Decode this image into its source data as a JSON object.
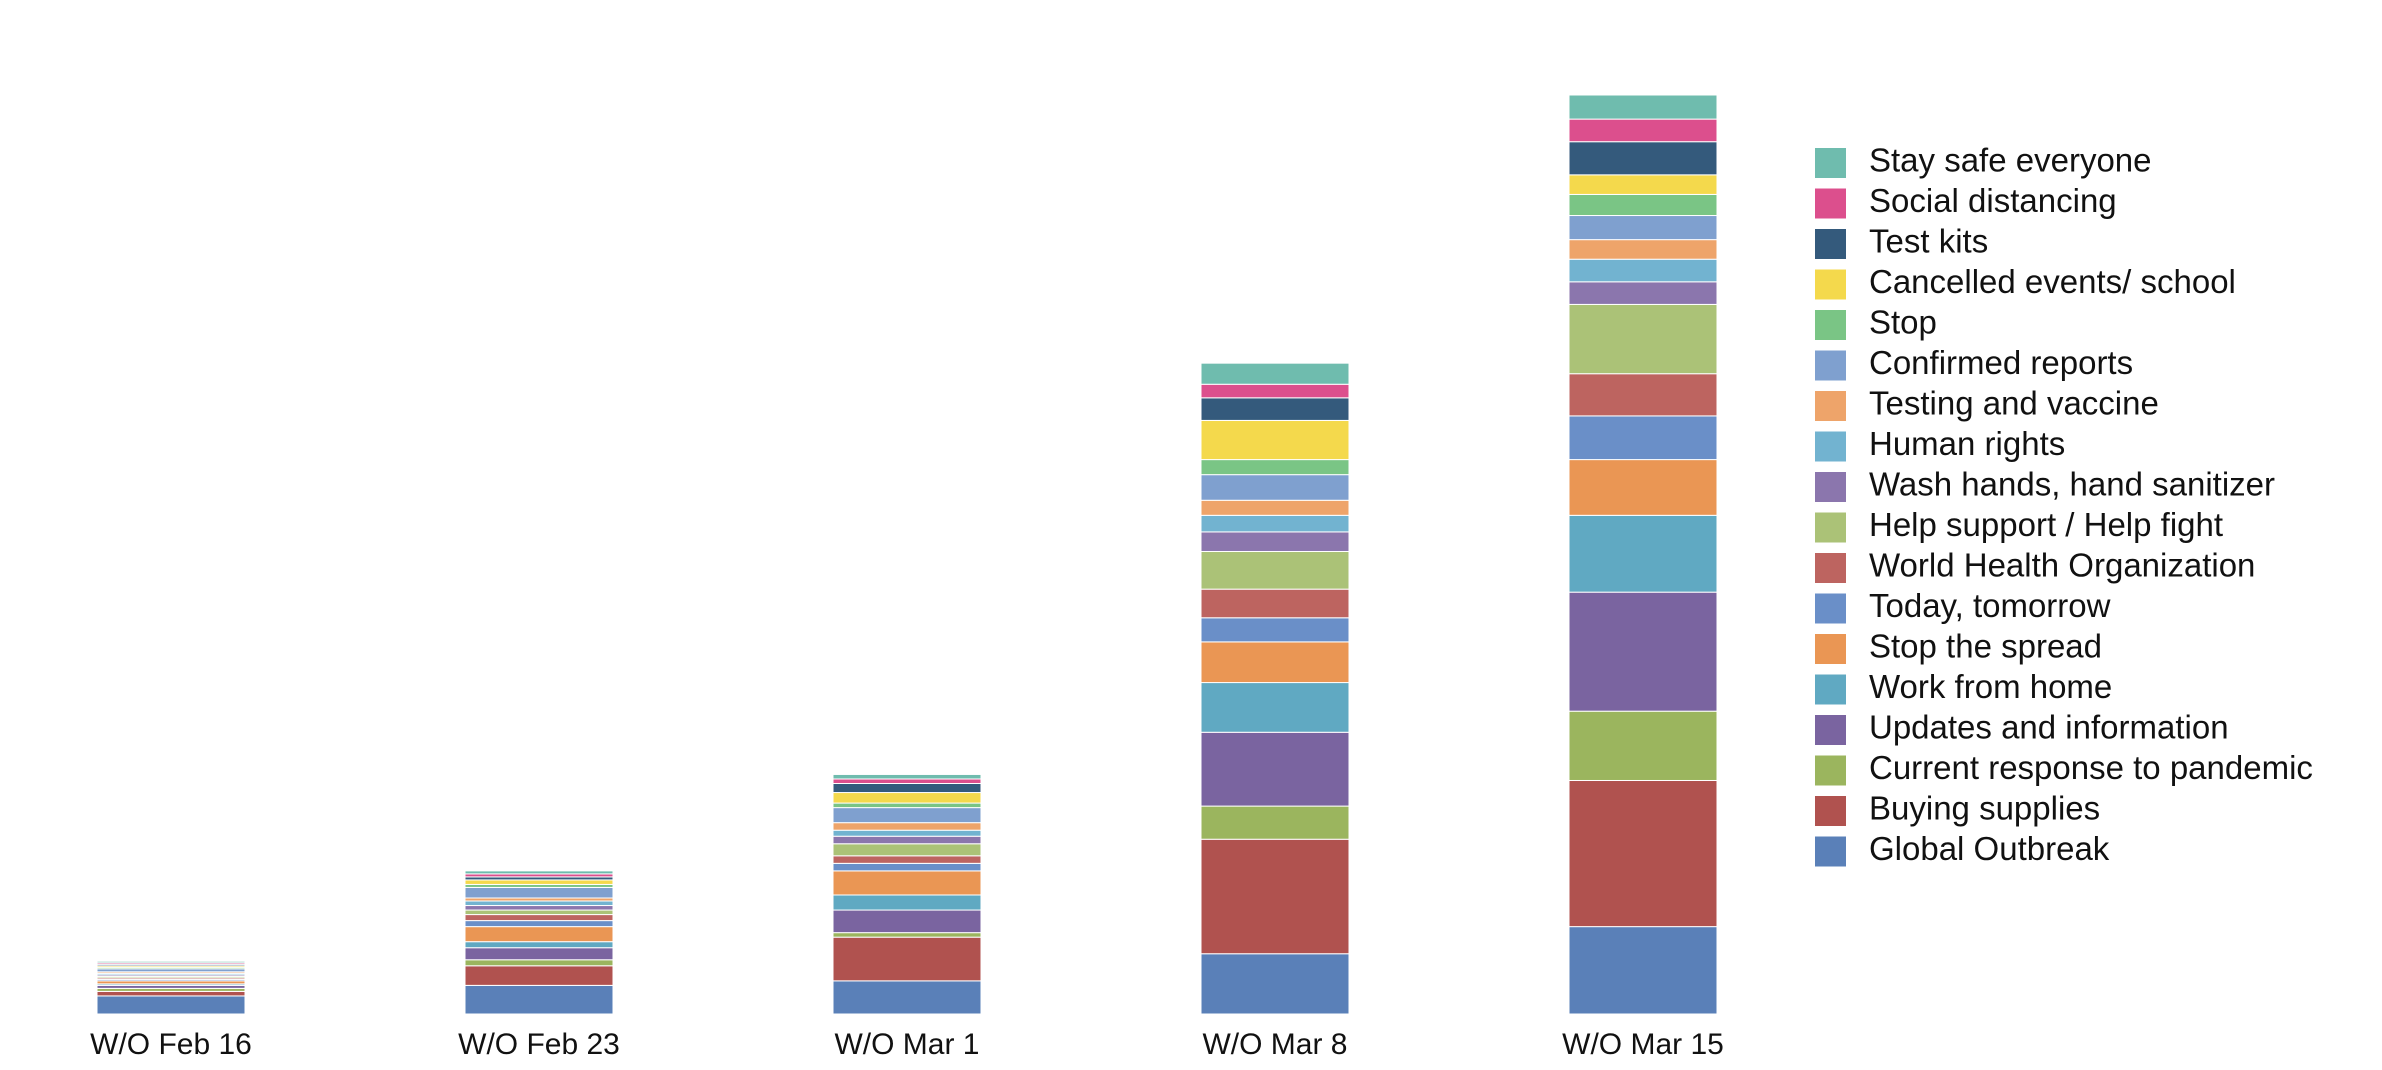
{
  "chart_data": {
    "type": "stacked-bar",
    "categories": [
      "W/O Feb 16",
      "W/O Feb 23",
      "W/O Mar 1",
      "W/O Mar 8",
      "W/O Mar 15"
    ],
    "series": [
      {
        "name": "Global Outbreak",
        "color": "#5a80b8",
        "values": [
          12,
          19,
          22,
          40,
          58
        ]
      },
      {
        "name": "Buying supplies",
        "color": "#b0524f",
        "values": [
          3,
          13,
          29,
          76,
          97
        ]
      },
      {
        "name": "Current response to pandemic",
        "color": "#9bb55e",
        "values": [
          2,
          4,
          3,
          22,
          46
        ]
      },
      {
        "name": "Updates and information",
        "color": "#7a64a0",
        "values": [
          2,
          8,
          15,
          49,
          79
        ]
      },
      {
        "name": "Work from home",
        "color": "#60a9c2",
        "values": [
          1,
          4,
          10,
          33,
          51
        ]
      },
      {
        "name": "Stop the spread",
        "color": "#ea9654",
        "values": [
          2,
          10,
          16,
          27,
          37
        ]
      },
      {
        "name": "Today, tomorrow",
        "color": "#6a8fc8",
        "values": [
          1,
          4,
          5,
          16,
          29
        ]
      },
      {
        "name": "World Health Organization",
        "color": "#bd6460",
        "values": [
          1,
          4,
          5,
          19,
          28
        ]
      },
      {
        "name": "Help support / Help fight",
        "color": "#abc277",
        "values": [
          1,
          3,
          8,
          25,
          46
        ]
      },
      {
        "name": "Wash hands, hand sanitizer",
        "color": "#8b76ad",
        "values": [
          1,
          3,
          5,
          13,
          15
        ]
      },
      {
        "name": "Human rights",
        "color": "#72b3d0",
        "values": [
          1,
          3,
          4,
          11,
          15
        ]
      },
      {
        "name": "Testing and vaccine",
        "color": "#eea46a",
        "values": [
          1,
          2,
          5,
          10,
          13
        ]
      },
      {
        "name": "Confirmed reports",
        "color": "#7fa0cf",
        "values": [
          2,
          7,
          10,
          17,
          16
        ]
      },
      {
        "name": "Stop",
        "color": "#7ac585",
        "values": [
          1,
          2,
          3,
          10,
          14
        ]
      },
      {
        "name": "Cancelled events/ school",
        "color": "#f4d94c",
        "values": [
          1,
          3,
          7,
          26,
          13
        ]
      },
      {
        "name": "Test kits",
        "color": "#345a7c",
        "values": [
          1,
          2,
          6,
          15,
          22
        ]
      },
      {
        "name": "Social distancing",
        "color": "#dc4f8d",
        "values": [
          1,
          2,
          3,
          9,
          15
        ]
      },
      {
        "name": "Stay safe everyone",
        "color": "#6fbcae",
        "values": [
          1,
          2,
          3,
          14,
          16
        ]
      }
    ]
  }
}
